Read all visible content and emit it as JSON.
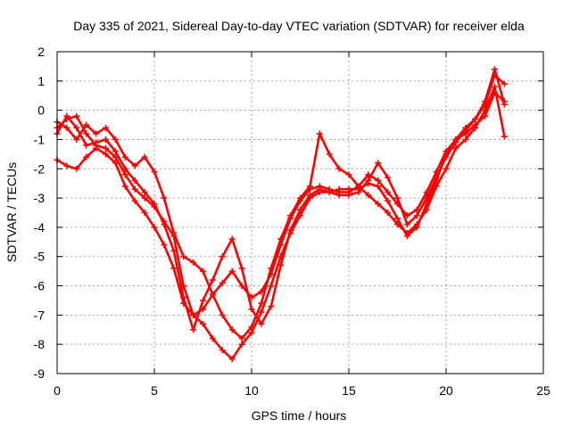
{
  "chart_data": {
    "type": "scatter",
    "title": "Day 335 of 2021, Sidereal Day-to-day VTEC variation (SDTVAR) for receiver elda",
    "xlabel": "GPS time / hours",
    "ylabel": "SDTVAR / TECUs",
    "xlim": [
      0,
      25
    ],
    "ylim": [
      -9,
      2
    ],
    "xticks": [
      "0",
      "5",
      "10",
      "15",
      "20",
      "25"
    ],
    "yticks": [
      "2",
      "1",
      "0",
      "-1",
      "-2",
      "-3",
      "-4",
      "-5",
      "-6",
      "-7",
      "-8",
      "-9"
    ],
    "grid": true,
    "legend": "none",
    "marker": "plus",
    "color": "#ff0000",
    "series": [
      {
        "x": [
          0.0,
          0.5,
          1.0,
          1.5,
          2.0,
          2.5,
          3.0,
          3.5,
          4.0,
          4.5,
          5.0,
          5.5,
          6.0,
          6.5,
          7.0,
          7.5,
          8.0,
          8.5,
          9.0,
          9.5,
          10.0,
          10.5,
          11.0,
          11.5,
          12.0,
          12.5,
          13.0,
          13.5,
          14.0,
          14.5,
          15.0,
          15.5,
          16.0,
          16.5,
          17.0,
          17.5,
          18.0,
          18.5,
          19.0,
          19.5,
          20.0,
          20.5,
          21.0,
          21.5,
          22.0,
          22.5,
          23.0
        ],
        "y": [
          -0.6,
          -0.3,
          -0.2,
          -0.8,
          -1.2,
          -1.3,
          -1.6,
          -2.2,
          -2.7,
          -3.0,
          -3.3,
          -3.8,
          -4.3,
          -6.0,
          -7.0,
          -7.3,
          -7.8,
          -8.2,
          -8.5,
          -8.0,
          -7.6,
          -6.9,
          -6.0,
          -5.0,
          -4.2,
          -3.6,
          -3.0,
          -2.8,
          -2.8,
          -2.7,
          -2.7,
          -2.7,
          -2.5,
          -2.6,
          -3.1,
          -3.7,
          -4.3,
          -4.0,
          -3.2,
          -2.4,
          -1.5,
          -1.0,
          -0.8,
          -0.5,
          -0.2,
          0.6,
          0.3
        ]
      },
      {
        "x": [
          0.0,
          0.5,
          1.0,
          1.5,
          2.0,
          2.5,
          3.0,
          3.5,
          4.0,
          4.5,
          5.0,
          5.5,
          6.0,
          6.5,
          7.0,
          7.5,
          8.0,
          8.5,
          9.0,
          9.5,
          10.0,
          10.5,
          11.0,
          11.5,
          12.0,
          12.5,
          13.0,
          13.5,
          14.0,
          14.5,
          15.0,
          15.5,
          16.0,
          16.5,
          17.0,
          17.5,
          18.0,
          18.5,
          19.0,
          19.5,
          20.0,
          20.5,
          21.0,
          21.5,
          22.0,
          22.5,
          23.0
        ],
        "y": [
          -1.7,
          -1.9,
          -2.0,
          -1.6,
          -1.3,
          -1.5,
          -1.8,
          -2.6,
          -3.1,
          -3.5,
          -4.0,
          -4.6,
          -5.4,
          -6.6,
          -7.0,
          -6.8,
          -6.3,
          -5.9,
          -5.5,
          -6.0,
          -6.4,
          -6.2,
          -5.6,
          -4.6,
          -3.7,
          -3.1,
          -2.7,
          -2.6,
          -2.7,
          -2.8,
          -2.8,
          -2.6,
          -2.2,
          -2.4,
          -2.8,
          -3.2,
          -3.6,
          -3.4,
          -2.8,
          -2.1,
          -1.4,
          -1.0,
          -0.6,
          -0.3,
          0.2,
          1.2,
          0.9
        ]
      },
      {
        "x": [
          0.0,
          0.5,
          1.0,
          1.5,
          2.0,
          2.5,
          3.0,
          3.5,
          4.0,
          4.5,
          5.0,
          5.5,
          6.0,
          6.5,
          7.0,
          7.5,
          8.0,
          8.5,
          9.0,
          9.5,
          10.0,
          10.5,
          11.0,
          11.5,
          12.0,
          12.5,
          13.0,
          13.5,
          14.0,
          14.5,
          15.0,
          15.5,
          16.0,
          16.5,
          17.0,
          17.5,
          18.0,
          18.5,
          19.0,
          19.5,
          20.0,
          20.5,
          21.0,
          21.5,
          22.0,
          22.5,
          23.0
        ],
        "y": [
          -0.4,
          -0.6,
          -1.0,
          -0.5,
          -0.8,
          -0.6,
          -1.0,
          -1.6,
          -1.9,
          -1.6,
          -2.1,
          -3.0,
          -4.2,
          -5.0,
          -5.2,
          -5.5,
          -6.3,
          -7.0,
          -7.5,
          -7.8,
          -7.4,
          -6.6,
          -5.4,
          -4.4,
          -3.6,
          -3.0,
          -2.6,
          -0.8,
          -1.5,
          -2.0,
          -2.2,
          -2.6,
          -2.9,
          -3.2,
          -3.5,
          -3.9,
          -4.2,
          -3.9,
          -3.4,
          -2.6,
          -2.0,
          -1.3,
          -1.0,
          -0.6,
          0.0,
          0.8,
          -0.9
        ]
      },
      {
        "x": [
          0.0,
          0.5,
          1.0,
          1.5,
          2.0,
          2.5,
          3.0,
          3.5,
          4.0,
          4.5,
          5.0,
          5.5,
          6.0,
          6.5,
          7.0,
          7.5,
          8.0,
          8.5,
          9.0,
          9.5,
          10.0,
          10.5,
          11.0,
          11.5,
          12.0,
          12.5,
          13.0,
          13.5,
          14.0,
          14.5,
          15.0,
          15.5,
          16.0,
          16.5,
          17.0,
          17.5,
          18.0,
          18.5,
          19.0,
          19.5,
          20.0,
          20.5,
          21.0,
          21.5,
          22.0,
          22.5,
          23.0
        ],
        "y": [
          -0.8,
          -0.2,
          -0.6,
          -1.2,
          -1.1,
          -1.0,
          -1.4,
          -2.0,
          -2.4,
          -2.8,
          -3.2,
          -3.9,
          -4.8,
          -6.4,
          -7.5,
          -6.5,
          -5.8,
          -5.0,
          -4.4,
          -5.4,
          -6.8,
          -7.3,
          -6.7,
          -5.3,
          -4.1,
          -3.4,
          -2.9,
          -2.7,
          -2.8,
          -2.9,
          -2.9,
          -2.8,
          -2.4,
          -1.8,
          -2.3,
          -3.0,
          -3.9,
          -3.6,
          -3.0,
          -2.3,
          -1.6,
          -1.1,
          -0.7,
          -0.3,
          0.3,
          1.4,
          0.2
        ]
      }
    ]
  }
}
